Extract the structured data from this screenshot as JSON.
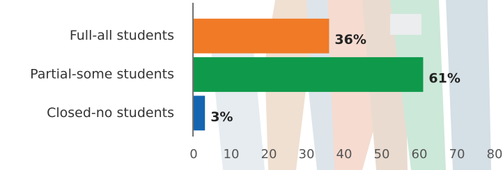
{
  "chart_data": {
    "type": "bar",
    "orientation": "horizontal",
    "categories": [
      "Full-all students",
      "Partial-some students",
      "Closed-no students"
    ],
    "values": [
      36,
      61,
      3
    ],
    "value_labels": [
      "36%",
      "61%",
      "3%"
    ],
    "colors": [
      "#f07a26",
      "#0f9a4b",
      "#1565b0"
    ],
    "xlim": [
      0,
      80
    ],
    "xticks": [
      0,
      10,
      20,
      30,
      40,
      50,
      60,
      70,
      80
    ],
    "grid": false
  }
}
